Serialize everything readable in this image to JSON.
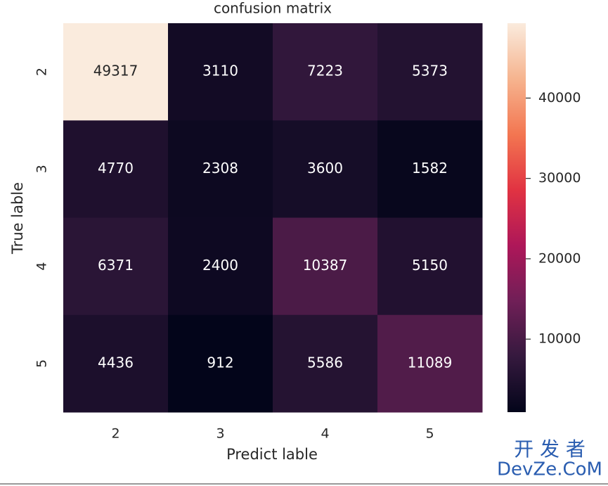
{
  "chart_data": {
    "type": "heatmap",
    "title": "confusion matrix",
    "x_label": "Predict lable",
    "y_label": "True lable",
    "x_categories": [
      "2",
      "3",
      "4",
      "5"
    ],
    "y_categories": [
      "2",
      "3",
      "4",
      "5"
    ],
    "values": [
      [
        49317,
        3110,
        7223,
        5373
      ],
      [
        4770,
        2308,
        3600,
        1582
      ],
      [
        6371,
        2400,
        10387,
        5150
      ],
      [
        4436,
        912,
        5586,
        11089
      ]
    ],
    "colorscale": [
      "#03051A",
      "#35193E",
      "#701F57",
      "#AE1759",
      "#E13342",
      "#F37651",
      "#F6B48F",
      "#FAEBDD"
    ],
    "zlim": [
      912,
      49317
    ],
    "zticks": [
      10000,
      20000,
      30000,
      40000
    ],
    "watermark": [
      "开 发 者",
      "DevZe.CoM"
    ]
  }
}
